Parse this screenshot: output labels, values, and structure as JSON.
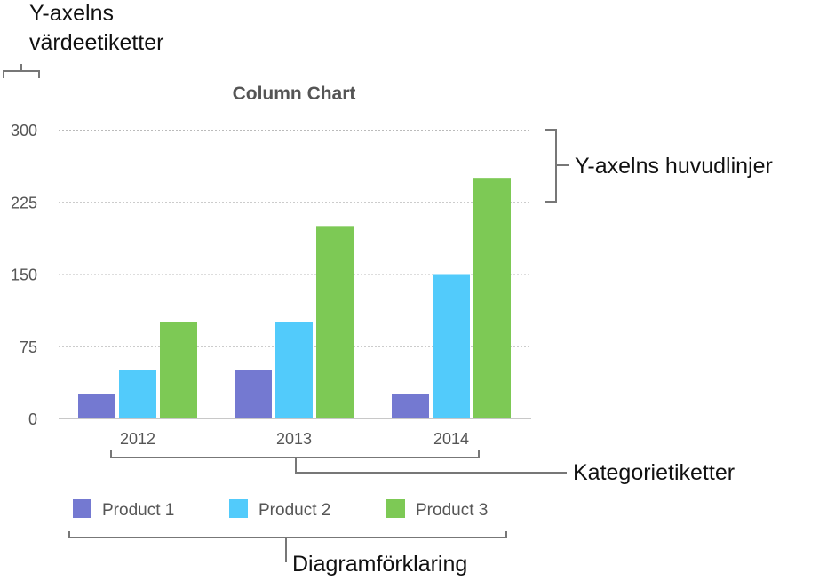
{
  "chart_data": {
    "type": "bar",
    "title": "Column Chart",
    "categories": [
      "2012",
      "2013",
      "2014"
    ],
    "series": [
      {
        "name": "Product 1",
        "values": [
          25,
          50,
          25
        ],
        "color": "#7479d1"
      },
      {
        "name": "Product 2",
        "values": [
          50,
          100,
          150
        ],
        "color": "#52cbfb"
      },
      {
        "name": "Product 3",
        "values": [
          100,
          200,
          250
        ],
        "color": "#7dc955"
      }
    ],
    "y_ticks": [
      "0",
      "75",
      "150",
      "225",
      "300"
    ],
    "ylim": [
      0,
      300
    ],
    "grid": true,
    "legend_position": "bottom"
  },
  "annotations": {
    "y_value_labels": [
      "Y-axelns",
      "värdeetiketter"
    ],
    "y_major_gridlines": "Y-axelns huvudlinjer",
    "category_labels": "Kategorietiketter",
    "legend": "Diagramförklaring"
  }
}
